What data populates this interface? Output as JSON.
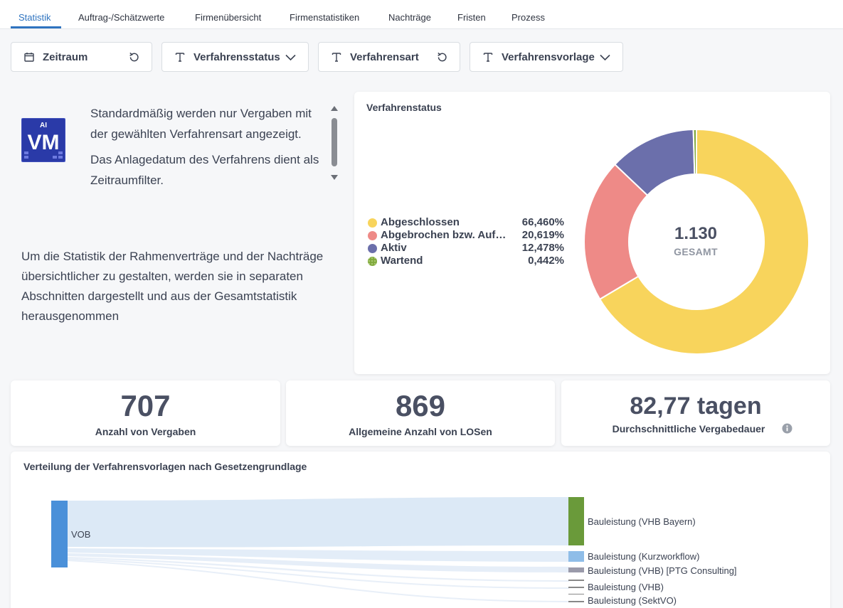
{
  "tabs": [
    {
      "label": "Statistik",
      "active": true
    },
    {
      "label": "Auftrag-/Schätzwerte"
    },
    {
      "label": "Firmenübersicht"
    },
    {
      "label": "Firmenstatistiken"
    },
    {
      "label": "Nachträge"
    },
    {
      "label": "Fristen"
    },
    {
      "label": "Prozess"
    }
  ],
  "filters": {
    "zeitraum": "Zeitraum",
    "verfahrensstatus": "Verfahrensstatus",
    "verfahrensart": "Verfahrensart",
    "verfahrensvorlage": "Verfahrensvorlage"
  },
  "info": {
    "logo_small": "AI",
    "logo_big": "VM",
    "line1": "Standardmäßig werden nur Vergaben mit der gewählten Verfahrensart angezeigt.",
    "line2": "Das Anlagedatum des Verfahrens dient als Zeitraumfilter.",
    "rahmen": "Um die Statistik der Rahmenverträge und der Nachträge übersichtlicher zu gestalten, werden sie in separaten Abschnitten dargestellt und aus der Gesamtstatistik herausgenommen"
  },
  "status_chart": {
    "title": "Verfahrenstatus",
    "center_value": "1.130",
    "center_label": "GESAMT"
  },
  "chart_data": {
    "type": "pie",
    "title": "Verfahrenstatus",
    "total": 1130,
    "slices": [
      {
        "label": "Abgeschlossen",
        "display": "Abgeschlossen",
        "value": 66.46,
        "pct": "66,460%",
        "color": "#f8d45c"
      },
      {
        "label": "Abgebrochen bzw. Aufgehoben",
        "display": "Abgebrochen bzw. Aufg...",
        "value": 20.619,
        "pct": "20,619%",
        "color": "#ee8a87"
      },
      {
        "label": "Aktiv",
        "display": "Aktiv",
        "value": 12.478,
        "pct": "12,478%",
        "color": "#6b6fab"
      },
      {
        "label": "Wartend",
        "display": "Wartend",
        "value": 0.442,
        "pct": "0,442%",
        "color": "#7fa83a"
      }
    ]
  },
  "kpis": [
    {
      "value": "707",
      "label": "Anzahl von Vergaben"
    },
    {
      "value": "869",
      "label": "Allgemeine Anzahl von LOSen"
    },
    {
      "value": "82,77 tagen",
      "label": "Durchschnittliche Vergabedauer"
    }
  ],
  "sankey": {
    "title": "Verteilung der Verfahrensvorlagen nach Gesetzengrundlage",
    "source": "VOB",
    "targets": [
      "Bauleistung (VHB Bayern)",
      "Bauleistung (Kurzworkflow)",
      "Bauleistung (VHB) [PTG Consulting]",
      "Bauleistung (VHB)",
      "Bauleistung (SektVO)"
    ],
    "colors": {
      "source": "#4a90d9",
      "flow": "#dce9f6",
      "target1": "#6a9a3a",
      "target2": "#8fbde8",
      "target3": "#9a9aaa"
    }
  }
}
